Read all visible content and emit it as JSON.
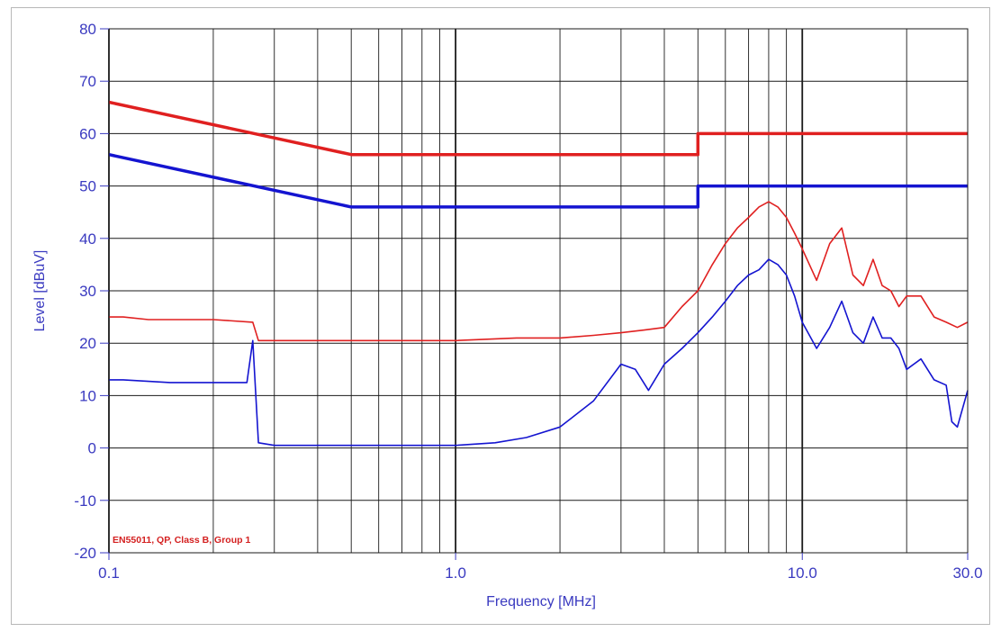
{
  "chart_data": {
    "type": "line",
    "xscale": "log",
    "xlim": [
      0.1,
      30.0
    ],
    "ylim": [
      -20,
      80
    ],
    "xlabel": "Frequency [MHz]",
    "ylabel": "Level [dBuV]",
    "x_tick_labels": [
      {
        "value": 0.1,
        "label": "0.1"
      },
      {
        "value": 1.0,
        "label": "1.0"
      },
      {
        "value": 10.0,
        "label": "10.0"
      },
      {
        "value": 30.0,
        "label": "30.0"
      }
    ],
    "y_ticks": [
      80,
      70,
      60,
      50,
      40,
      30,
      20,
      10,
      0,
      -10,
      -20
    ],
    "grid": true,
    "annotation": "EN55011, QP, Class B, Group 1",
    "colors": {
      "qp": "#e02020",
      "avg": "#1414d0",
      "axis_text": "#3a3ac0",
      "grid": "#1a1a1a"
    },
    "series": [
      {
        "role": "qp-limit",
        "color": "#e02020",
        "x": [
          0.1,
          0.5,
          5.0,
          5.0,
          30.0
        ],
        "y": [
          66,
          56,
          56,
          60,
          60
        ]
      },
      {
        "role": "avg-limit",
        "color": "#1414d0",
        "x": [
          0.1,
          0.5,
          5.0,
          5.0,
          30.0
        ],
        "y": [
          56,
          46,
          46,
          50,
          50
        ]
      },
      {
        "role": "qp-measurement",
        "color": "#e02020",
        "x": [
          0.1,
          0.11,
          0.13,
          0.2,
          0.26,
          0.27,
          0.35,
          0.5,
          0.7,
          1.0,
          1.5,
          2.0,
          2.5,
          3.0,
          3.5,
          4.0,
          4.5,
          5.0,
          5.5,
          6.0,
          6.5,
          7.0,
          7.5,
          8.0,
          8.5,
          9.0,
          9.5,
          10.0,
          11.0,
          12.0,
          13.0,
          14.0,
          15.0,
          16.0,
          17.0,
          18.0,
          19.0,
          20.0,
          22.0,
          24.0,
          26.0,
          28.0,
          30.0
        ],
        "y": [
          25,
          25,
          24.5,
          24.5,
          24,
          20.5,
          20.5,
          20.5,
          20.5,
          20.5,
          21,
          21,
          21.5,
          22,
          22.5,
          23,
          27,
          30,
          35,
          39,
          42,
          44,
          46,
          47,
          46,
          44,
          41,
          38,
          32,
          39,
          42,
          33,
          31,
          36,
          31,
          30,
          27,
          29,
          29,
          25,
          24,
          23,
          24
        ]
      },
      {
        "role": "avg-measurement",
        "color": "#1414d0",
        "x": [
          0.1,
          0.11,
          0.15,
          0.25,
          0.26,
          0.27,
          0.3,
          0.5,
          0.7,
          1.0,
          1.3,
          1.6,
          2.0,
          2.5,
          3.0,
          3.3,
          3.6,
          4.0,
          4.5,
          5.0,
          5.5,
          6.0,
          6.5,
          7.0,
          7.5,
          8.0,
          8.5,
          9.0,
          9.5,
          10.0,
          11.0,
          12.0,
          13.0,
          14.0,
          15.0,
          16.0,
          17.0,
          18.0,
          19.0,
          20.0,
          22.0,
          24.0,
          26.0,
          27.0,
          28.0,
          30.0
        ],
        "y": [
          13,
          13,
          12.5,
          12.5,
          20.5,
          1,
          0.5,
          0.5,
          0.5,
          0.5,
          1,
          2,
          4,
          9,
          16,
          15,
          11,
          16,
          19,
          22,
          25,
          28,
          31,
          33,
          34,
          36,
          35,
          33,
          29,
          24,
          19,
          23,
          28,
          22,
          20,
          25,
          21,
          21,
          19,
          15,
          17,
          13,
          12,
          5,
          4,
          11
        ]
      }
    ]
  }
}
